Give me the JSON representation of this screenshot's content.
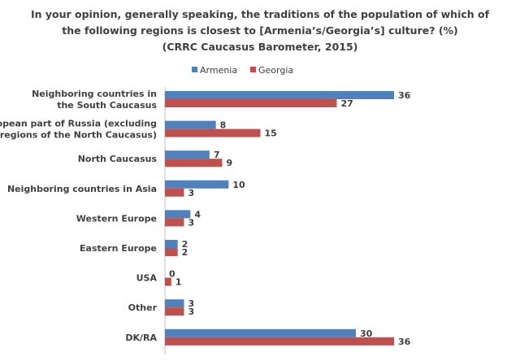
{
  "chart_data": {
    "type": "bar",
    "orientation": "horizontal",
    "title": [
      "In your opinion,  generally speaking,  the traditions  of the population  of which of",
      "the following regions is closest to [Armenia’s/Georgia’s]  culture? (%)",
      "(CRRC Caucasus  Barometer, 2015)"
    ],
    "legend_position": "top-center",
    "grid": false,
    "categories": [
      [
        "Neighboring countries in",
        "the South Caucasus"
      ],
      [
        "European part of Russia (excluding",
        "the regions of the North Caucasus)"
      ],
      [
        "North Caucasus"
      ],
      [
        "Neighboring countries in Asia"
      ],
      [
        "Western Europe"
      ],
      [
        "Eastern Europe"
      ],
      [
        "USA"
      ],
      [
        "Other"
      ],
      [
        "DK/RA"
      ]
    ],
    "series": [
      {
        "name": "Armenia",
        "color": "#4F81BD",
        "values": [
          36,
          8,
          7,
          10,
          4,
          2,
          0,
          3,
          30
        ]
      },
      {
        "name": "Georgia",
        "color": "#C0504D",
        "values": [
          27,
          15,
          9,
          3,
          3,
          2,
          1,
          3,
          36
        ]
      }
    ],
    "xlim": [
      0,
      36
    ]
  }
}
